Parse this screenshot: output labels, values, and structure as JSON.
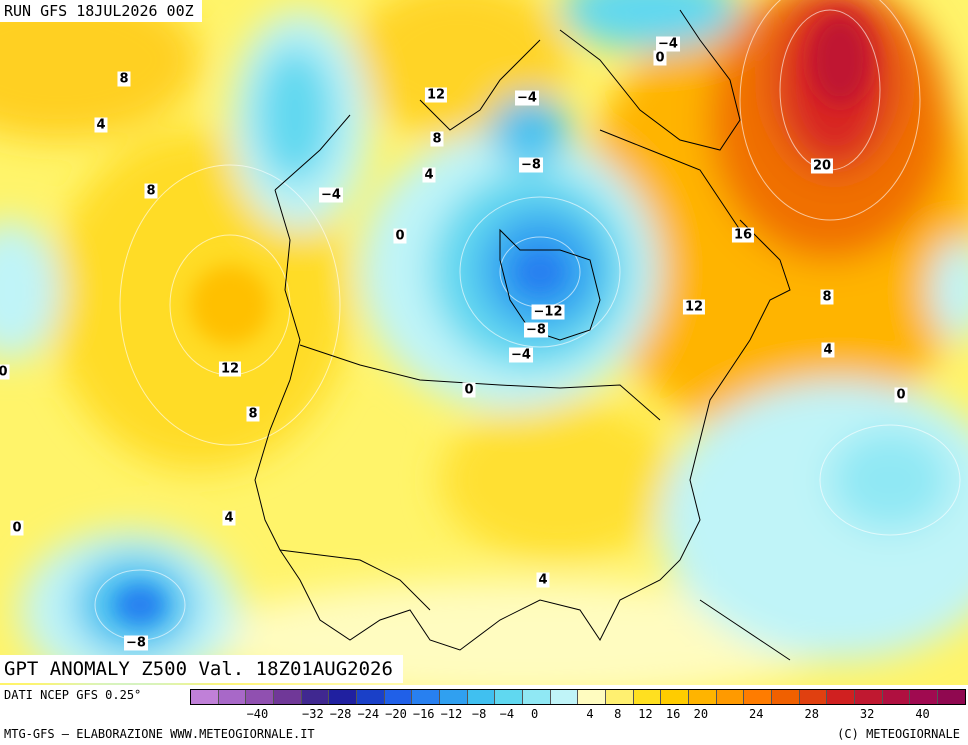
{
  "header": {
    "run_label": "RUN GFS 18JUL2026 00Z"
  },
  "title": "GPT ANOMALY Z500 Val. 18Z01AUG2026",
  "footer": {
    "source": "DATI NCEP GFS 0.25°",
    "credit": "MTG-GFS – ELABORAZIONE WWW.METEOGIORNALE.IT",
    "copyright": "(C) METEOGIORNALE"
  },
  "legend": {
    "colors": [
      "#c080d8",
      "#a868c8",
      "#9050b0",
      "#703898",
      "#402890",
      "#2020a0",
      "#1a40c8",
      "#2060e8",
      "#2880f0",
      "#30a0f0",
      "#40c0f0",
      "#60d8f0",
      "#90e8f4",
      "#c0f4f8",
      "#fffcc0",
      "#fff070",
      "#ffe020",
      "#ffcc00",
      "#ffb400",
      "#ff9a00",
      "#ff7c00",
      "#f06000",
      "#e04010",
      "#d02020",
      "#c01830",
      "#b01040",
      "#a00a50",
      "#900850"
    ],
    "ticks": [
      "−40",
      "−32",
      "−28",
      "−24",
      "−20",
      "−16",
      "−12",
      "−8",
      "−4",
      "0",
      "4",
      "8",
      "12",
      "16",
      "20",
      "24",
      "28",
      "32",
      "40"
    ]
  },
  "labels": [
    {
      "text": "8"
    },
    {
      "text": "4"
    },
    {
      "text": "8"
    },
    {
      "text": "12"
    },
    {
      "text": "8"
    },
    {
      "text": "4"
    },
    {
      "text": "0"
    },
    {
      "text": "−4"
    },
    {
      "text": "0"
    },
    {
      "text": "12"
    },
    {
      "text": "8"
    },
    {
      "text": "4"
    },
    {
      "text": "−4"
    },
    {
      "text": "−8"
    },
    {
      "text": "−4"
    },
    {
      "text": "0"
    },
    {
      "text": "20"
    },
    {
      "text": "16"
    },
    {
      "text": "12"
    },
    {
      "text": "8"
    },
    {
      "text": "4"
    },
    {
      "text": "0"
    },
    {
      "text": "−12"
    },
    {
      "text": "−8"
    },
    {
      "text": "−4"
    },
    {
      "text": "0"
    },
    {
      "text": "4"
    },
    {
      "text": "0"
    },
    {
      "text": "−8"
    },
    {
      "text": "0"
    }
  ]
}
